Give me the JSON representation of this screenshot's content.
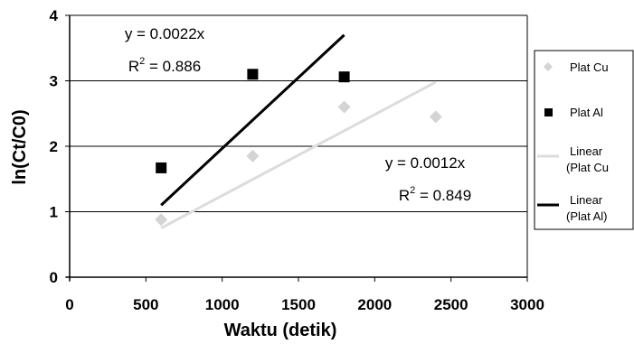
{
  "chart_data": {
    "type": "scatter",
    "xlabel": "Waktu (detik)",
    "ylabel": "ln(Ct/C0)",
    "xlim": [
      0,
      3000
    ],
    "ylim": [
      0,
      4
    ],
    "xticks": [
      "0",
      "500",
      "1000",
      "1500",
      "2000",
      "2500",
      "3000"
    ],
    "yticks": [
      "0",
      "1",
      "2",
      "3",
      "4"
    ],
    "grid": "horizontal",
    "legend_position": "right",
    "series": [
      {
        "name": "Plat Cu",
        "marker": "diamond",
        "color": "#d4d4d4",
        "points": [
          {
            "x": 600,
            "y": 0.88
          },
          {
            "x": 1200,
            "y": 1.85
          },
          {
            "x": 1800,
            "y": 2.6
          },
          {
            "x": 2400,
            "y": 2.45
          }
        ]
      },
      {
        "name": "Plat Al",
        "marker": "square",
        "color": "#000000",
        "points": [
          {
            "x": 600,
            "y": 1.67
          },
          {
            "x": 1200,
            "y": 3.1
          },
          {
            "x": 1800,
            "y": 3.06
          }
        ]
      }
    ],
    "trendlines": [
      {
        "name": "Linear\n(Plat Cu",
        "color": "#dcdcdc",
        "from": {
          "x": 600,
          "y": 0.75
        },
        "to": {
          "x": 2400,
          "y": 2.98
        },
        "equation": "y = 0.0012x",
        "r2_label": "R",
        "r2_sup": "2",
        "r2_value": " = 0.849"
      },
      {
        "name": "Linear\n(Plat Al)",
        "color": "#000000",
        "from": {
          "x": 600,
          "y": 1.1
        },
        "to": {
          "x": 1800,
          "y": 3.7
        },
        "equation": "y = 0.0022x",
        "r2_label": "R",
        "r2_sup": "2",
        "r2_value": " = 0.886"
      }
    ],
    "legend": [
      {
        "label": "Plat Cu",
        "kind": "diamond",
        "color": "#d4d4d4"
      },
      {
        "label": "Plat Al",
        "kind": "square",
        "color": "#000000"
      },
      {
        "label": "Linear\n(Plat Cu",
        "kind": "line",
        "color": "#dcdcdc"
      },
      {
        "label": "Linear\n(Plat Al)",
        "kind": "line",
        "color": "#000000"
      }
    ]
  }
}
